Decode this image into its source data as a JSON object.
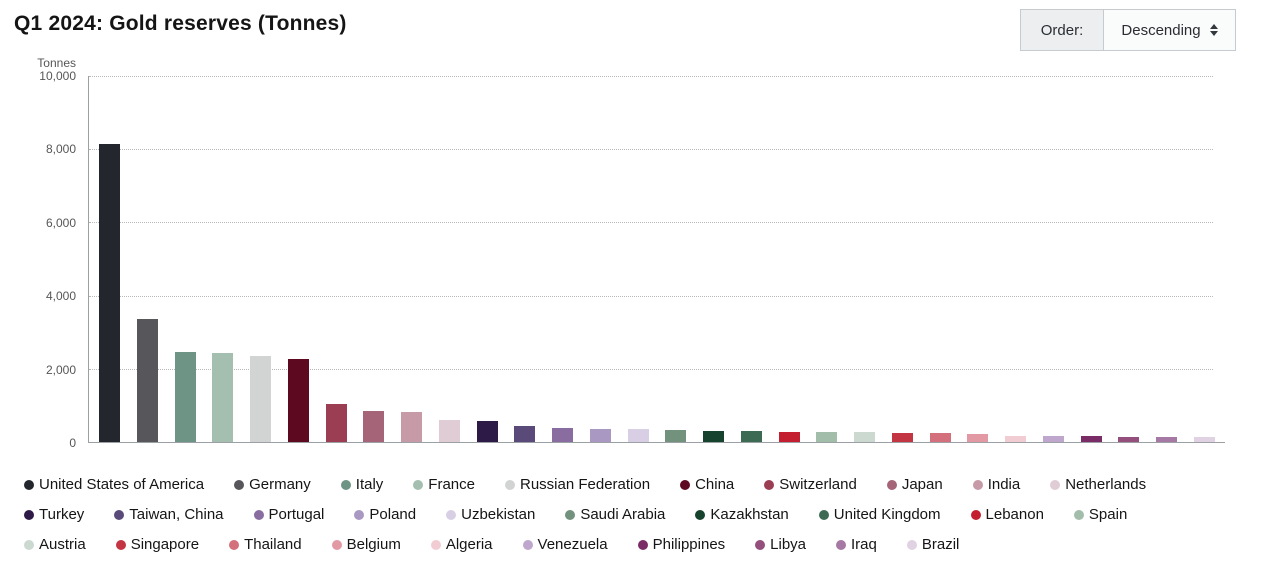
{
  "title": "Q1 2024: Gold reserves (Tonnes)",
  "order_control": {
    "label": "Order:",
    "selected": "Descending"
  },
  "y_axis": {
    "unit_label": "Tonnes",
    "ticks": [
      "10,000",
      "8,000",
      "6,000",
      "4,000",
      "2,000",
      "0"
    ]
  },
  "chart_data": {
    "type": "bar",
    "title": "Q1 2024: Gold reserves (Tonnes)",
    "xlabel": "",
    "ylabel": "Tonnes",
    "ylim": [
      0,
      10000
    ],
    "grid": "horizontal-dotted",
    "legend_position": "bottom",
    "order": "descending",
    "categories": [
      "United States of America",
      "Germany",
      "Italy",
      "France",
      "Russian Federation",
      "China",
      "Switzerland",
      "Japan",
      "India",
      "Netherlands",
      "Turkey",
      "Taiwan, China",
      "Portugal",
      "Poland",
      "Uzbekistan",
      "Saudi Arabia",
      "Kazakhstan",
      "United Kingdom",
      "Lebanon",
      "Spain",
      "Austria",
      "Singapore",
      "Thailand",
      "Belgium",
      "Algeria",
      "Venezuela",
      "Philippines",
      "Libya",
      "Iraq",
      "Brazil"
    ],
    "values": [
      8133,
      3353,
      2452,
      2437,
      2333,
      2262,
      1040,
      846,
      822,
      612,
      570,
      424,
      383,
      360,
      358,
      323,
      312,
      310,
      287,
      282,
      280,
      237,
      235,
      227,
      174,
      161,
      159,
      147,
      146,
      130
    ],
    "colors": [
      "#23262c",
      "#57575b",
      "#6d9484",
      "#a4bfb0",
      "#d2d4d3",
      "#5d0a21",
      "#9b3d53",
      "#a56477",
      "#c69aa7",
      "#e0ccd4",
      "#2e1a47",
      "#594a7a",
      "#8a6da0",
      "#a898c2",
      "#d8cfe4",
      "#72927e",
      "#15432e",
      "#3d6a53",
      "#c41f30",
      "#a3bdab",
      "#ccd9d1",
      "#c43543",
      "#d4707b",
      "#e299a4",
      "#f2ccd3",
      "#bfa6cc",
      "#7a2c67",
      "#944f7d",
      "#a678a4",
      "#e0d2e2"
    ],
    "legend_rows": [
      10,
      10,
      10
    ]
  }
}
